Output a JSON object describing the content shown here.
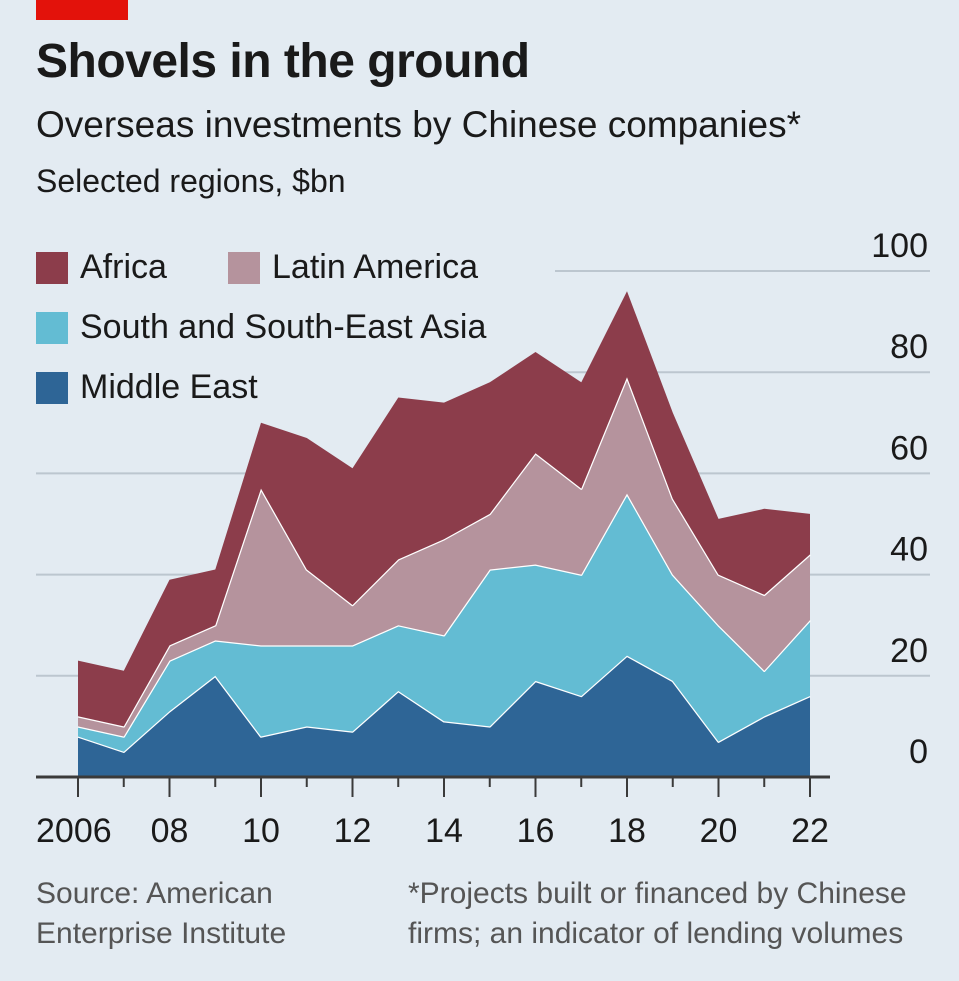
{
  "header": {
    "title": "Shovels in the ground",
    "subtitle": "Overseas investments by Chinese companies*",
    "units": "Selected regions, $bn"
  },
  "footer": {
    "source_line1": "Source: American",
    "source_line2": "Enterprise Institute",
    "note_line1": "*Projects built or financed by Chinese",
    "note_line2": "firms; an indicator of lending volumes"
  },
  "colors": {
    "background": "#e3ebf2",
    "brand_red": "#e3120b",
    "middle_east": "#2e6596",
    "south_asia": "#63bcd3",
    "latin_america": "#b5939d",
    "africa": "#8c3d4b",
    "gridline": "#bcc6cf"
  },
  "chart_data": {
    "type": "area",
    "stacked": true,
    "title": "Shovels in the ground",
    "subtitle": "Overseas investments by Chinese companies*",
    "ylabel": "Selected regions, $bn",
    "xlabel": "",
    "ylim": [
      0,
      100
    ],
    "yticks": [
      0,
      20,
      40,
      60,
      80,
      100
    ],
    "x": [
      2006,
      2007,
      2008,
      2009,
      2010,
      2011,
      2012,
      2013,
      2014,
      2015,
      2016,
      2017,
      2018,
      2019,
      2020,
      2021,
      2022
    ],
    "x_tick_labels": [
      "2006",
      "08",
      "10",
      "12",
      "14",
      "16",
      "18",
      "20",
      "22"
    ],
    "x_tick_years": [
      2006,
      2008,
      2010,
      2012,
      2014,
      2016,
      2018,
      2020,
      2022
    ],
    "series": [
      {
        "name": "Middle East",
        "color_key": "middle_east",
        "values": [
          8,
          5,
          13,
          20,
          8,
          10,
          9,
          17,
          11,
          10,
          19,
          16,
          24,
          19,
          7,
          12,
          16
        ]
      },
      {
        "name": "South and South-East Asia",
        "color_key": "south_asia",
        "values": [
          2,
          3,
          10,
          7,
          18,
          16,
          17,
          13,
          17,
          31,
          23,
          24,
          32,
          21,
          23,
          9,
          15
        ]
      },
      {
        "name": "Latin America",
        "color_key": "latin_america",
        "values": [
          2,
          2,
          3,
          3,
          31,
          15,
          8,
          13,
          19,
          11,
          22,
          17,
          23,
          15,
          10,
          15,
          13
        ]
      },
      {
        "name": "Africa",
        "color_key": "africa",
        "values": [
          11,
          11,
          13,
          11,
          13,
          26,
          27,
          32,
          27,
          26,
          20,
          21,
          17,
          17,
          11,
          17,
          8
        ]
      }
    ],
    "legend": [
      {
        "label": "Africa",
        "color_key": "africa"
      },
      {
        "label": "Latin America",
        "color_key": "latin_america"
      },
      {
        "label": "South and South-East Asia",
        "color_key": "south_asia"
      },
      {
        "label": "Middle East",
        "color_key": "middle_east"
      }
    ]
  }
}
